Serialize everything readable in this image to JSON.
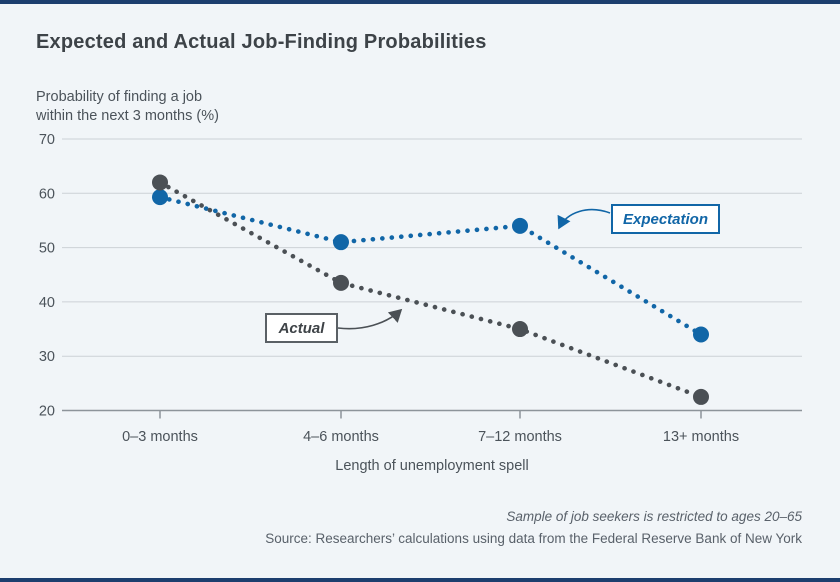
{
  "header": {
    "title": "Expected and Actual Job-Finding Probabilities"
  },
  "chart_data": {
    "type": "line",
    "style": "dotted-line-with-point-markers",
    "categories": [
      "0–3 months",
      "4–6 months",
      "7–12 months",
      "13+ months"
    ],
    "series": [
      {
        "name": "Expectation",
        "values": [
          59.3,
          51,
          54,
          34
        ],
        "color": "#1166a7"
      },
      {
        "name": "Actual",
        "values": [
          62,
          43.5,
          35,
          22.5
        ],
        "color": "#4b5055"
      }
    ],
    "ylabel_line1": "Probability of finding a job",
    "ylabel_line2": "within the next 3 months (%)",
    "xlabel": "Length of unemployment spell",
    "yticks": [
      70,
      60,
      50,
      40,
      30,
      20
    ],
    "ylim": [
      20,
      70
    ],
    "grid": true,
    "legend": "inline-annotation-callouts"
  },
  "annotations": {
    "expectation_label": "Expectation",
    "actual_label": "Actual"
  },
  "footer": {
    "note": "Sample of job seekers is restricted to ages 20–65",
    "source": "Source: Researchers’ calculations using data from the Federal Reserve Bank of New York"
  },
  "colors": {
    "background": "#f1f5f8",
    "frame_rule_navy": "#1c3e6e",
    "expectation_blue": "#1166a7",
    "actual_gray": "#4b5055",
    "gridline": "#ccd1d6",
    "axis": "#8d949a",
    "text_dark": "#3d4348",
    "text_secondary": "#4b535a"
  }
}
